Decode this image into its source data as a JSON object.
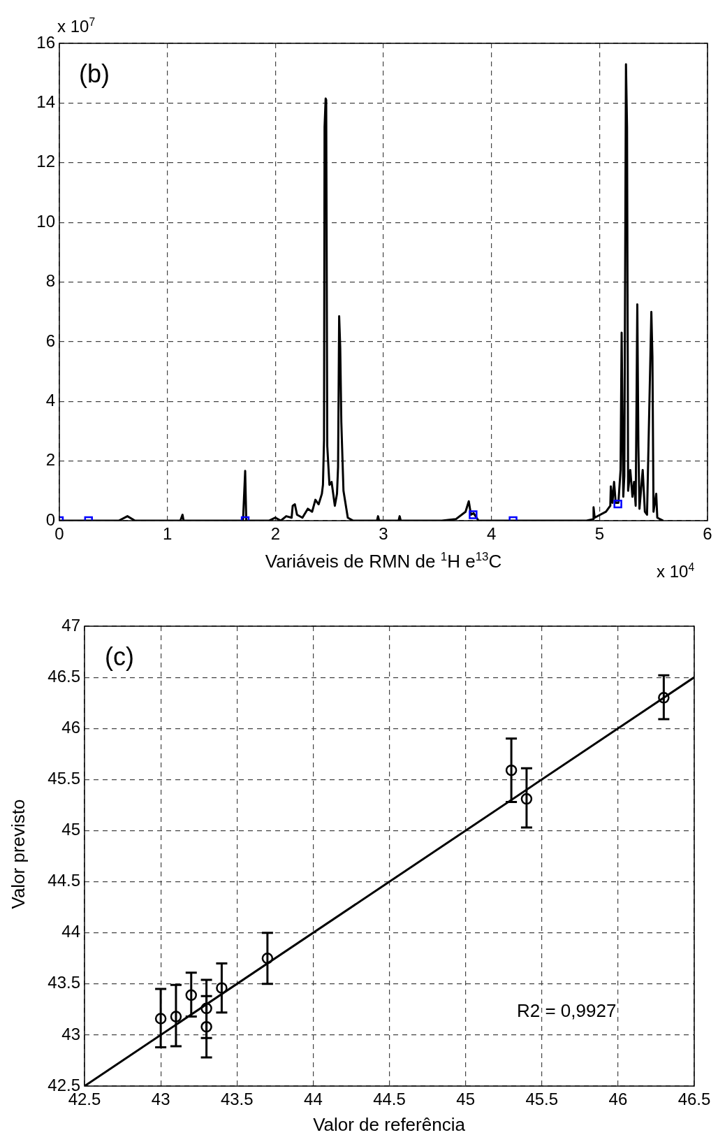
{
  "chart_data": [
    {
      "type": "line",
      "xlabel": "Variáveis de RMN de $^{1}$H e$^{13}$C",
      "annotations": [
        "(b)",
        "x 10$^{7}$",
        "x 10$^{4}$"
      ],
      "xlim": [
        0,
        6
      ],
      "xticks": [
        0,
        1,
        2,
        3,
        4,
        5,
        6
      ],
      "ylim": [
        0,
        16
      ],
      "yticks": [
        0,
        2,
        4,
        6,
        8,
        10,
        12,
        14,
        16
      ],
      "grid": true,
      "legend": false,
      "series": [
        {
          "color": "#000000",
          "marker": "none",
          "x": [
            0,
            0.55,
            0.63,
            0.7,
            1.12,
            1.14,
            1.15,
            1.7,
            1.72,
            1.73,
            1.94,
            2.0,
            2.05,
            2.1,
            2.15,
            2.16,
            2.18,
            2.2,
            2.25,
            2.3,
            2.34,
            2.37,
            2.4,
            2.43,
            2.44,
            2.45,
            2.455,
            2.465,
            2.47,
            2.48,
            2.5,
            2.52,
            2.55,
            2.57,
            2.58,
            2.59,
            2.6,
            2.61,
            2.63,
            2.67,
            2.72,
            2.94,
            2.95,
            2.96,
            3.14,
            3.15,
            3.16,
            3.54,
            3.67,
            3.76,
            3.79,
            3.81,
            3.835,
            3.88,
            4.88,
            4.94,
            4.945,
            4.955,
            5.06,
            5.1,
            5.105,
            5.12,
            5.135,
            5.15,
            5.175,
            5.195,
            5.205,
            5.22,
            5.23,
            5.245,
            5.255,
            5.265,
            5.285,
            5.305,
            5.32,
            5.335,
            5.35,
            5.36,
            5.37,
            5.4,
            5.42,
            5.44,
            5.48,
            5.49,
            5.5,
            5.525,
            5.535,
            5.59
          ],
          "values": [
            0,
            0,
            0.15,
            0,
            0,
            0.2,
            0,
            0,
            1.67,
            0,
            0,
            0.1,
            0,
            0.15,
            0.1,
            0.5,
            0.55,
            0.2,
            0.1,
            0.4,
            0.3,
            0.7,
            0.55,
            0.9,
            1.2,
            2.7,
            13.2,
            14.15,
            14.1,
            2.5,
            1.2,
            1.3,
            0.5,
            0.9,
            1.8,
            6.85,
            5.8,
            3.3,
            1.0,
            0.1,
            0,
            0,
            0.15,
            0,
            0,
            0.15,
            0,
            0,
            0.05,
            0.3,
            0.65,
            0.2,
            0.25,
            0,
            0,
            0.05,
            0.45,
            0.1,
            0.3,
            0.5,
            1.15,
            0.6,
            1.3,
            0.6,
            0.6,
            1.7,
            6.3,
            0.8,
            1.5,
            15.3,
            13.2,
            1.0,
            1.7,
            0.8,
            1.3,
            0.5,
            7.25,
            2.5,
            0.4,
            1.7,
            0.3,
            0.2,
            7.0,
            5.5,
            0.3,
            0.9,
            0.1,
            0
          ]
        },
        {
          "type": "scatter",
          "color": "#0000ff",
          "marker": "square",
          "x": [
            0,
            0.27,
            1.72,
            3.83,
            4.2,
            5.17
          ],
          "values": [
            0,
            0,
            0,
            0.2,
            0,
            0.56
          ]
        }
      ]
    },
    {
      "type": "scatter",
      "xlabel": "Valor de referência",
      "ylabel": "Valor previsto",
      "annotations": [
        "(c)",
        "R2 = 0,9927"
      ],
      "xlim": [
        42.5,
        46.5
      ],
      "xticks": [
        42.5,
        43,
        43.5,
        44,
        44.5,
        45,
        45.5,
        46,
        46.5
      ],
      "ylim": [
        42.5,
        47
      ],
      "yticks": [
        42.5,
        43,
        43.5,
        44,
        44.5,
        45,
        45.5,
        46,
        46.5,
        47
      ],
      "grid": true,
      "legend": false,
      "series": [
        {
          "color": "#000000",
          "marker": "circle",
          "x": [
            43,
            43.1,
            43.2,
            43.3,
            43.3,
            43.4,
            43.7,
            45.3,
            45.4,
            46.3
          ],
          "values": [
            43.16,
            43.18,
            43.39,
            43.26,
            43.08,
            43.46,
            43.75,
            45.59,
            45.31,
            46.3
          ],
          "errors": [
            [
              42.88,
              43.45
            ],
            [
              42.89,
              43.49
            ],
            [
              43.18,
              43.61
            ],
            [
              42.97,
              43.54
            ],
            [
              42.78,
              43.38
            ],
            [
              43.22,
              43.7
            ],
            [
              43.5,
              44.0
            ],
            [
              45.28,
              45.9
            ],
            [
              45.03,
              45.61
            ],
            [
              46.09,
              46.52
            ]
          ]
        },
        {
          "type": "line",
          "color": "#000000",
          "marker": "none",
          "x": [
            42.5,
            46.5
          ],
          "values": [
            42.5,
            46.5
          ]
        }
      ]
    }
  ]
}
